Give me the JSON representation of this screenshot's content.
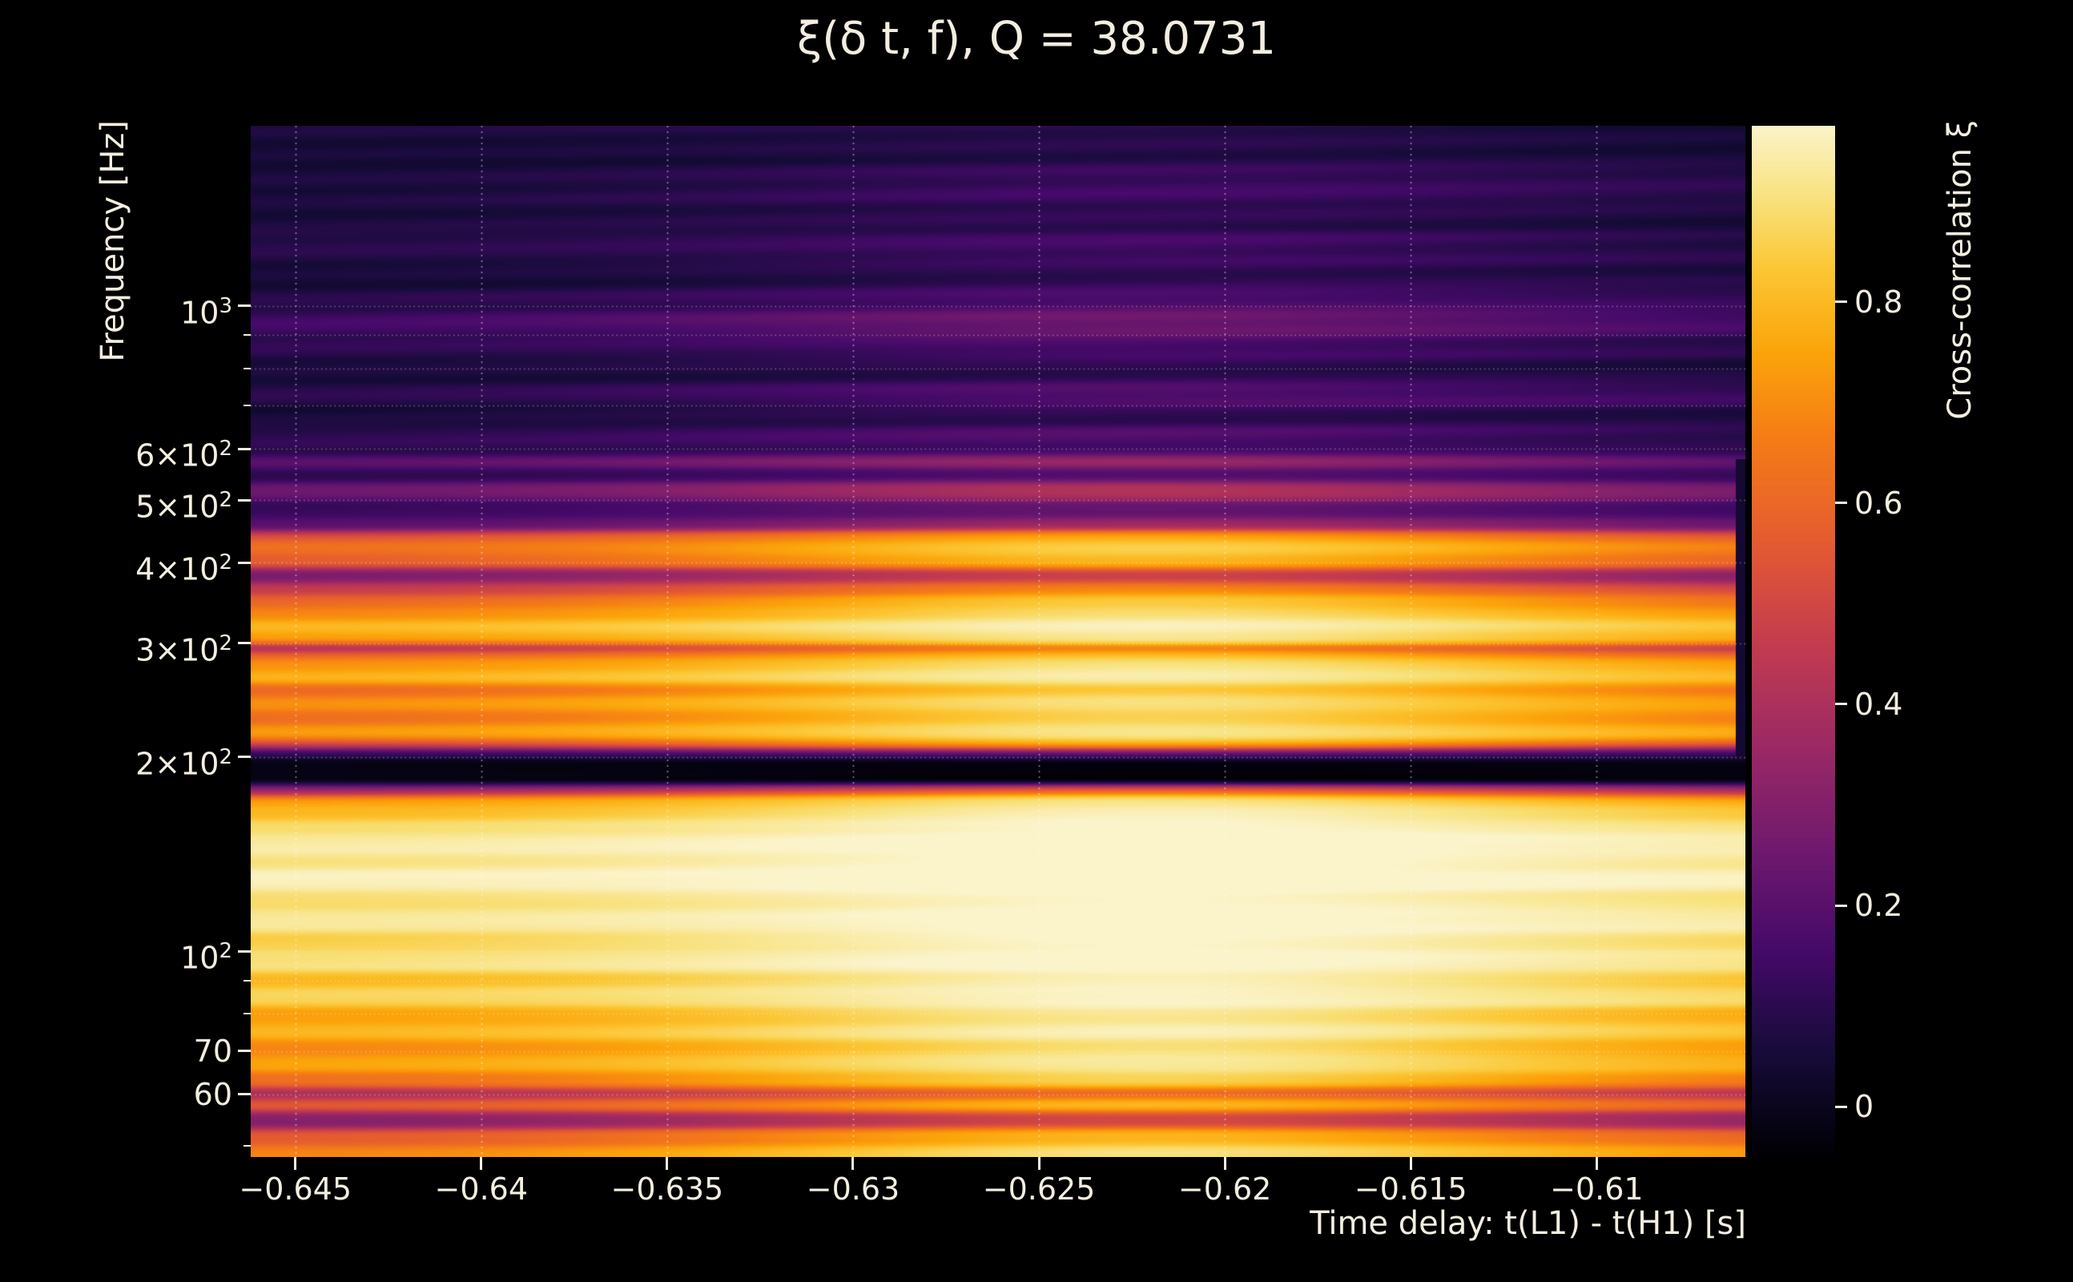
{
  "title": "ξ(δ t, f), Q = 38.0731",
  "axes": {
    "x_label": "Time delay: t(L1) - t(H1) [s]",
    "y_label": "Frequency [Hz]",
    "colorbar_label": "Cross-correlation ξ"
  },
  "chart_data": {
    "type": "heatmap",
    "title": "ξ(δ t, f), Q = 38.0731",
    "q_value": 38.0731,
    "xlabel": "Time delay: t(L1) - t(H1) [s]",
    "ylabel": "Frequency [Hz]",
    "x_range": [
      -0.6462,
      -0.606
    ],
    "x_ticks": [
      -0.645,
      -0.64,
      -0.635,
      -0.63,
      -0.625,
      -0.62,
      -0.615,
      -0.61
    ],
    "x_tick_labels": [
      "−0.645",
      "−0.64",
      "−0.635",
      "−0.63",
      "−0.625",
      "−0.62",
      "−0.615",
      "−0.61"
    ],
    "y_scale": "log",
    "y_range_hz": [
      48,
      1900
    ],
    "y_major_ticks": [
      {
        "hz": 1000,
        "base": "10",
        "exp": "3"
      },
      {
        "hz": 600,
        "base": "6×10",
        "exp": "2"
      },
      {
        "hz": 500,
        "base": "5×10",
        "exp": "2"
      },
      {
        "hz": 400,
        "base": "4×10",
        "exp": "2"
      },
      {
        "hz": 300,
        "base": "3×10",
        "exp": "2"
      },
      {
        "hz": 200,
        "base": "2×10",
        "exp": "2"
      },
      {
        "hz": 100,
        "base": "10",
        "exp": "2"
      },
      {
        "hz": 70,
        "base": "70",
        "exp": ""
      },
      {
        "hz": 60,
        "base": "60",
        "exp": ""
      }
    ],
    "y_minor_ticks_hz": [
      50,
      80,
      90,
      700,
      800,
      900
    ],
    "y_gridlines_hz": [
      60,
      70,
      80,
      90,
      100,
      200,
      300,
      400,
      500,
      600,
      700,
      800,
      900,
      1000
    ],
    "colorbar": {
      "label": "Cross-correlation ξ",
      "vmin": -0.05,
      "vmax": 0.975,
      "ticks": [
        0,
        0.2,
        0.4,
        0.6,
        0.8
      ],
      "tick_labels": [
        "0",
        "0.2",
        "0.4",
        "0.6",
        "0.8"
      ]
    },
    "colormap": [
      [
        0.0,
        "#000004"
      ],
      [
        0.1,
        "#160b39"
      ],
      [
        0.2,
        "#450a69"
      ],
      [
        0.3,
        "#71196e"
      ],
      [
        0.4,
        "#9c2964"
      ],
      [
        0.5,
        "#c43c4e"
      ],
      [
        0.6,
        "#e55c30"
      ],
      [
        0.7,
        "#f57d15"
      ],
      [
        0.78,
        "#fba40a"
      ],
      [
        0.86,
        "#fbc633"
      ],
      [
        0.93,
        "#f8e27e"
      ],
      [
        1.0,
        "#fbf3c9"
      ]
    ],
    "freq_bands": [
      [
        48,
        50,
        0.68
      ],
      [
        50,
        53,
        0.55
      ],
      [
        53,
        56.5,
        0.3
      ],
      [
        56.5,
        59,
        0.55
      ],
      [
        59,
        61.5,
        0.38
      ],
      [
        61.5,
        65,
        0.62
      ],
      [
        65,
        69,
        0.74
      ],
      [
        69,
        73,
        0.68
      ],
      [
        73,
        77,
        0.8
      ],
      [
        77,
        82,
        0.73
      ],
      [
        82,
        88,
        0.86
      ],
      [
        88,
        93,
        0.79
      ],
      [
        93,
        100,
        0.9
      ],
      [
        100,
        107,
        0.85
      ],
      [
        107,
        116,
        0.93
      ],
      [
        116,
        124,
        0.88
      ],
      [
        124,
        134,
        0.96
      ],
      [
        134,
        141,
        0.9
      ],
      [
        141,
        152,
        0.94
      ],
      [
        152,
        160,
        0.88
      ],
      [
        160,
        168,
        0.8
      ],
      [
        168,
        174,
        0.72
      ],
      [
        174,
        181,
        0.35
      ],
      [
        181,
        199,
        -0.02
      ],
      [
        199,
        206,
        0.12
      ],
      [
        206,
        213,
        0.5
      ],
      [
        213,
        224,
        0.72
      ],
      [
        224,
        236,
        0.62
      ],
      [
        236,
        248,
        0.7
      ],
      [
        248,
        260,
        0.6
      ],
      [
        260,
        272,
        0.78
      ],
      [
        272,
        284,
        0.7
      ],
      [
        284,
        292,
        0.55
      ],
      [
        292,
        299,
        0.35
      ],
      [
        299,
        312,
        0.72
      ],
      [
        312,
        326,
        0.8
      ],
      [
        326,
        340,
        0.68
      ],
      [
        340,
        356,
        0.6
      ],
      [
        356,
        372,
        0.45
      ],
      [
        372,
        392,
        0.28
      ],
      [
        392,
        412,
        0.55
      ],
      [
        412,
        432,
        0.62
      ],
      [
        432,
        448,
        0.5
      ],
      [
        448,
        468,
        0.2
      ],
      [
        468,
        500,
        0.12
      ],
      [
        500,
        532,
        0.24
      ],
      [
        532,
        560,
        0.1
      ],
      [
        560,
        585,
        0.2
      ],
      [
        585,
        605,
        0.08
      ],
      [
        605,
        650,
        0.09
      ],
      [
        650,
        700,
        0.05
      ],
      [
        700,
        760,
        0.1
      ],
      [
        760,
        830,
        0.06
      ],
      [
        830,
        900,
        0.09
      ],
      [
        900,
        980,
        0.13
      ],
      [
        980,
        1060,
        0.09
      ],
      [
        1060,
        1160,
        0.06
      ],
      [
        1160,
        1300,
        0.08
      ],
      [
        1300,
        1450,
        0.05
      ],
      [
        1450,
        1650,
        0.07
      ],
      [
        1650,
        1900,
        0.05
      ]
    ],
    "time_modulation": {
      "center": -0.622,
      "sigma": 0.013,
      "amp": 0.25
    }
  }
}
